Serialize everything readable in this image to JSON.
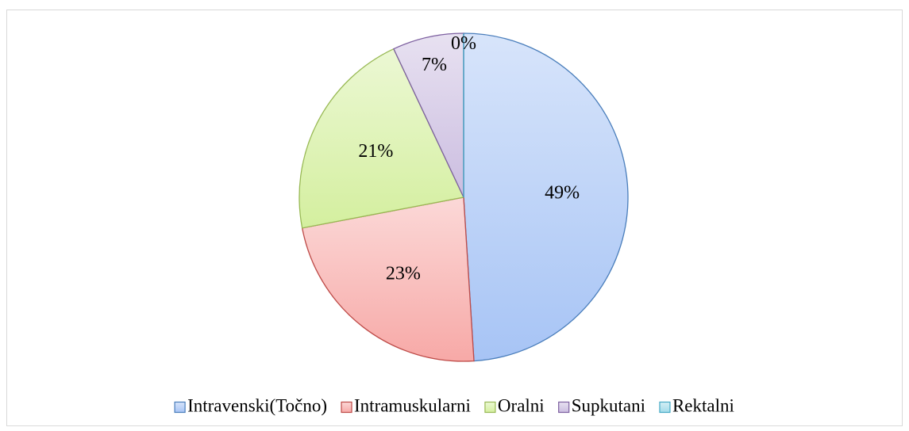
{
  "chart_data": {
    "type": "pie",
    "categories": [
      "Intravenski(Točno)",
      "Intramuskularni",
      "Oralni",
      "Supkutani",
      "Rektalni"
    ],
    "values": [
      49,
      23,
      21,
      7,
      0
    ],
    "value_labels": [
      "49%",
      "23%",
      "21%",
      "7%",
      "0%"
    ],
    "colors": [
      "#a7c4f5",
      "#f7a9a7",
      "#d4ef9f",
      "#cbbde0",
      "#a2dbe9"
    ],
    "edge_colors": [
      "#4a7ebb",
      "#be4b48",
      "#98b954",
      "#7d60a0",
      "#46aac5"
    ],
    "legend": "bottom"
  }
}
